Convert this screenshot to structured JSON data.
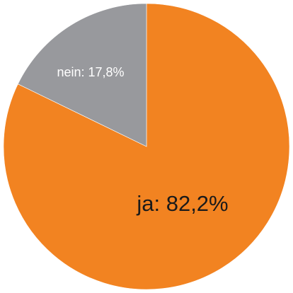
{
  "chart_data": {
    "type": "pie",
    "title": "",
    "slices": [
      {
        "name": "ja",
        "value": 82.2,
        "label": "ja: 82,2%",
        "color": "#F28321",
        "label_color": "#1a1a1a"
      },
      {
        "name": "nein",
        "value": 17.8,
        "label": "nein: 17,8%",
        "color": "#98999D",
        "label_color": "#ffffff"
      }
    ],
    "start_angle_deg": 0,
    "direction": "clockwise",
    "legend": "none"
  }
}
